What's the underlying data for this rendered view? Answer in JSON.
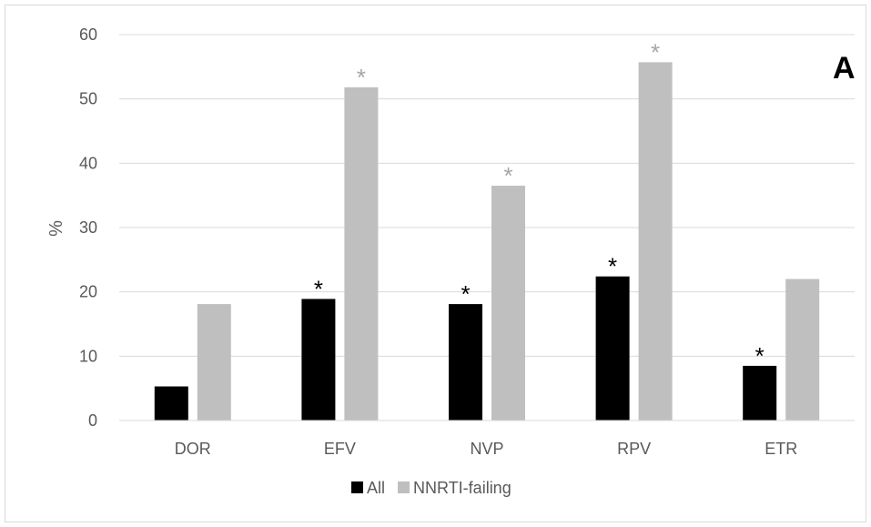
{
  "chart_data": {
    "type": "bar",
    "panel_label": "A",
    "xlabel": "",
    "ylabel": "%",
    "ylim": [
      0,
      60
    ],
    "yticks": [
      0,
      10,
      20,
      30,
      40,
      50,
      60
    ],
    "grid": true,
    "legend_position": "bottom",
    "categories": [
      "DOR",
      "EFV",
      "NVP",
      "RPV",
      "ETR"
    ],
    "series": [
      {
        "name": "All",
        "color": "#000000",
        "values": [
          5.3,
          18.9,
          18.1,
          22.4,
          8.5
        ],
        "significance": [
          "",
          "*",
          "*",
          "*",
          "*"
        ]
      },
      {
        "name": "NNRTI-failing",
        "color": "#bfbfbf",
        "values": [
          18.1,
          51.8,
          36.5,
          55.7,
          22.0
        ],
        "significance": [
          "",
          "*",
          "*",
          "*",
          ""
        ]
      }
    ]
  }
}
